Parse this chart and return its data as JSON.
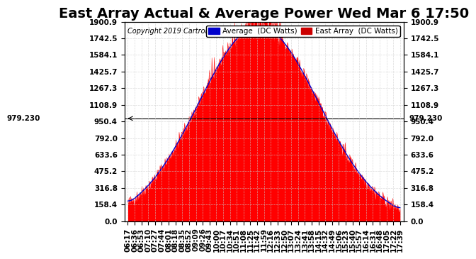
{
  "title": "East Array Actual & Average Power Wed Mar 6 17:50",
  "copyright": "Copyright 2019 Cartronics.com",
  "ymax": 1900.9,
  "ymin": 0.0,
  "yticks": [
    0.0,
    158.4,
    316.8,
    475.2,
    633.6,
    792.0,
    950.4,
    1108.9,
    1267.3,
    1425.7,
    1584.1,
    1742.5,
    1900.9
  ],
  "hline_value": 979.23,
  "hline_label": "979.230",
  "legend_avg_color": "#0000cc",
  "legend_east_color": "#cc0000",
  "fill_color": "#ff0000",
  "line_color": "#ff0000",
  "bg_color": "#ffffff",
  "plot_bg_color": "#ffffff",
  "grid_color": "#cccccc",
  "title_fontsize": 14,
  "copyright_fontsize": 7,
  "tick_fontsize": 7.5,
  "xtick_labels": [
    "06:17",
    "06:36",
    "06:53",
    "07:10",
    "07:27",
    "07:44",
    "08:01",
    "08:18",
    "08:35",
    "08:52",
    "09:09",
    "09:26",
    "09:43",
    "10:00",
    "10:17",
    "10:34",
    "10:51",
    "11:08",
    "11:25",
    "11:42",
    "11:59",
    "12:16",
    "12:33",
    "12:50",
    "13:07",
    "13:24",
    "13:41",
    "13:58",
    "14:15",
    "14:32",
    "14:49",
    "15:06",
    "15:23",
    "15:40",
    "15:57",
    "16:14",
    "16:31",
    "16:48",
    "17:05",
    "17:22",
    "17:39"
  ],
  "num_points": 600
}
